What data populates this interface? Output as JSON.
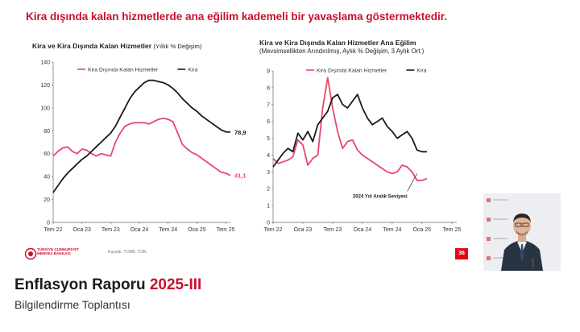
{
  "headline": "Kira dışında kalan hizmetlerde ana eğilim kademeli bir yavaşlama göstermektedir.",
  "chart_left": {
    "title_bold": "Kira ve Kira Dışında Kalan Hizmetler",
    "title_paren": "(Yıllık % Değişim)",
    "subtitle": ""
  },
  "chart_right": {
    "title_bold": "Kira ve Kira Dışında Kalan Hizmetler Ana Eğilim",
    "subtitle": "(Mevsimsellikten Arındırılmış, Aylık % Değişim, 3 Aylık Ort.)"
  },
  "chart_data": [
    {
      "type": "line",
      "title": "Kira ve Kira Dışında Kalan Hizmetler (Yıllık % Değişim)",
      "ylim": [
        0,
        140
      ],
      "yticks": [
        0,
        20,
        40,
        60,
        80,
        100,
        120,
        140
      ],
      "x_tick_labels": [
        "Tem 22",
        "Oca 23",
        "Tem 23",
        "Oca 24",
        "Tem 24",
        "Oca 25",
        "Tem 25"
      ],
      "x_tick_months": [
        0,
        6,
        12,
        18,
        24,
        30,
        36
      ],
      "legend_position": "top",
      "grid": false,
      "series": [
        {
          "name": "Kira Dışında Kalan Hizmetler",
          "color": "#e8466b",
          "end_label": "41,1",
          "values": [
            58,
            62,
            65,
            66,
            62,
            60,
            64,
            63,
            60,
            58,
            60,
            59,
            58,
            70,
            78,
            84,
            86,
            87,
            87,
            87,
            86,
            88,
            90,
            91,
            90,
            88,
            78,
            68,
            64,
            61,
            59,
            56,
            53,
            50,
            47,
            44,
            43,
            41.1
          ]
        },
        {
          "name": "Kira",
          "color": "#1a1a1a",
          "end_label": "78,9",
          "values": [
            26,
            32,
            38,
            43,
            47,
            51,
            55,
            58,
            62,
            66,
            70,
            74,
            78,
            84,
            92,
            100,
            108,
            114,
            118,
            122,
            124,
            124,
            123,
            122,
            120,
            117,
            113,
            108,
            104,
            100,
            97,
            93,
            90,
            87,
            84,
            81,
            79,
            78.9
          ]
        }
      ]
    },
    {
      "type": "line",
      "title": "Kira ve Kira Dışında Kalan Hizmetler Ana Eğilim",
      "subtitle": "(Mevsimsellikten Arındırılmış, Aylık % Değişim, 3 Aylık Ort.)",
      "ylim": [
        0,
        9
      ],
      "yticks": [
        0,
        1,
        2,
        3,
        4,
        5,
        6,
        7,
        8,
        9
      ],
      "x_tick_labels": [
        "Tem 22",
        "Oca 23",
        "Tem 23",
        "Oca 24",
        "Tem 24",
        "Oca 25",
        "Tem 25"
      ],
      "x_tick_months": [
        0,
        6,
        12,
        18,
        24,
        30,
        36
      ],
      "legend_position": "top",
      "grid": false,
      "series": [
        {
          "name": "Kira Dışında Kalan Hizmetler",
          "color": "#e8466b",
          "values": [
            3.8,
            3.5,
            3.6,
            3.7,
            3.9,
            4.9,
            4.6,
            3.4,
            3.8,
            4.0,
            6.8,
            8.6,
            6.8,
            5.4,
            4.4,
            4.8,
            4.9,
            4.3,
            4.0,
            3.8,
            3.6,
            3.4,
            3.2,
            3.0,
            2.9,
            3.0,
            3.4,
            3.3,
            3.0,
            2.5,
            2.5,
            2.6
          ]
        },
        {
          "name": "Kira",
          "color": "#1a1a1a",
          "values": [
            3.3,
            3.7,
            4.1,
            4.4,
            4.2,
            5.3,
            4.9,
            5.4,
            4.8,
            5.8,
            6.2,
            6.6,
            7.4,
            7.6,
            7.0,
            6.8,
            7.2,
            7.6,
            6.8,
            6.2,
            5.8,
            6.0,
            6.2,
            5.7,
            5.4,
            5.0,
            5.2,
            5.4,
            5.0,
            4.3,
            4.2,
            4.2
          ]
        }
      ],
      "annotation": {
        "text": "2024 Yılı Aralık Seviyesi",
        "value": 3.0,
        "month_index": 29
      }
    }
  ],
  "footer": {
    "logo_line1": "TÜRKİYE CUMHURİYET",
    "logo_line2": "MERKEZ BANKASI",
    "source": "Kaynak: TCMB, TÜİK.",
    "page": "36"
  },
  "bottom": {
    "title_main": "Enflasyon Raporu ",
    "title_year": "2025-III",
    "subtitle": "Bilgilendirme Toplantısı"
  },
  "colors": {
    "accent_red": "#c8102e",
    "nonrent_pink": "#e8466b",
    "rent_black": "#1a1a1a",
    "page_badge": "#e30613"
  }
}
